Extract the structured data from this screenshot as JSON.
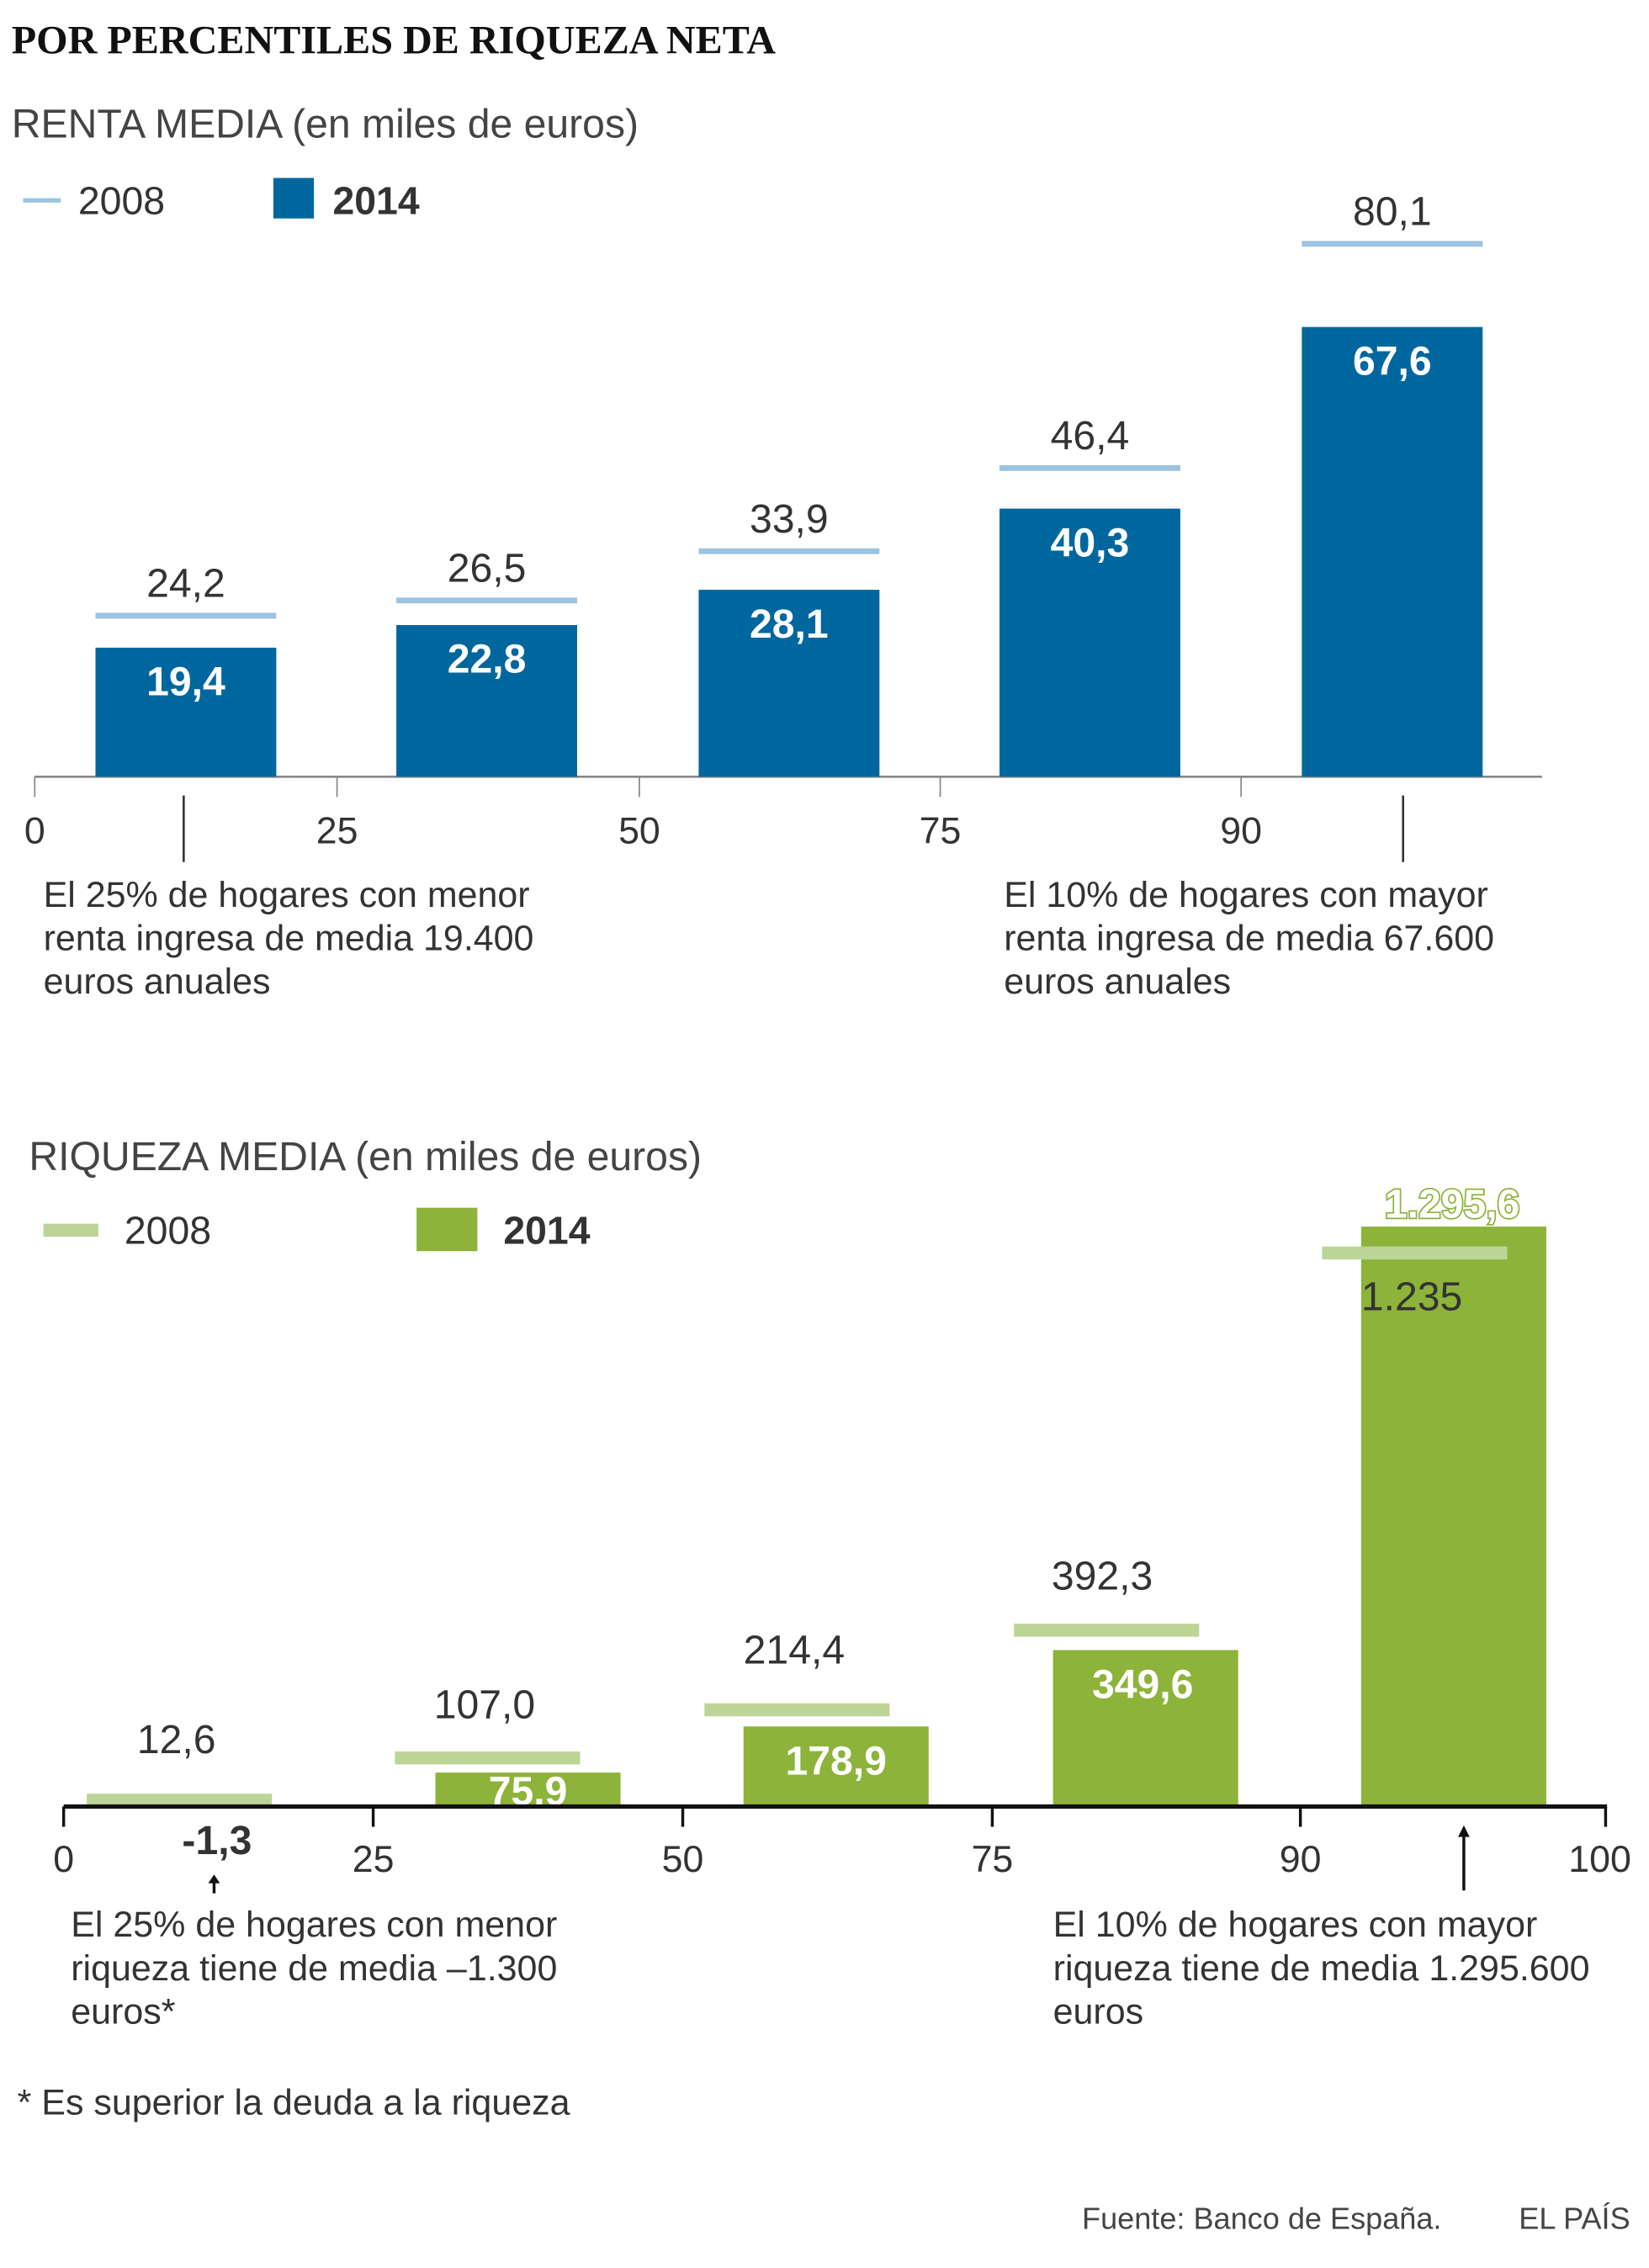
{
  "title": "POR PERCENTILES DE RIQUEZA NETA",
  "colors": {
    "blue_2014": "#00679e",
    "blue_2008": "#9cc3e0",
    "green_2014": "#8db33a",
    "green_2008": "#bcd597"
  },
  "chart_data": [
    {
      "type": "bar",
      "title": "RENTA MEDIA (en miles de euros)",
      "x_ticks": [
        "0",
        "25",
        "50",
        "75",
        "90"
      ],
      "categories": [
        "0-25",
        "25-50",
        "50-75",
        "75-90",
        "90-100"
      ],
      "series": [
        {
          "name": "2008",
          "style": "line",
          "values": [
            24.2,
            26.5,
            33.9,
            46.4,
            80.1
          ],
          "labels": [
            "24,2",
            "26,5",
            "33,9",
            "46,4",
            "80,1"
          ]
        },
        {
          "name": "2014",
          "style": "bar",
          "values": [
            19.4,
            22.8,
            28.1,
            40.3,
            67.6
          ],
          "labels": [
            "19,4",
            "22,8",
            "28,1",
            "40,3",
            "67,6"
          ]
        }
      ],
      "annotations": [
        {
          "lines": [
            "El 25% de hogares con menor",
            "renta ingresa de media 19.400",
            "euros anuales"
          ]
        },
        {
          "lines": [
            "El 10% de hogares con mayor",
            "renta ingresa  de media 67.600",
            "euros anuales"
          ]
        }
      ]
    },
    {
      "type": "bar",
      "title": "RIQUEZA MEDIA (en miles de euros)",
      "x_ticks": [
        "0",
        "25",
        "50",
        "75",
        "90",
        "100"
      ],
      "categories": [
        "0-25",
        "25-50",
        "50-75",
        "75-90",
        "90-100"
      ],
      "series": [
        {
          "name": "2008",
          "style": "line",
          "values": [
            12.6,
            107.0,
            214.4,
            392.3,
            1235
          ],
          "labels": [
            "12,6",
            "107,0",
            "214,4",
            "392,3",
            "1.235"
          ]
        },
        {
          "name": "2014",
          "style": "bar",
          "values": [
            -1.3,
            75.9,
            178.9,
            349.6,
            1295.6
          ],
          "labels": [
            "-1,3",
            "75.9",
            "178,9",
            "349,6",
            "1.295,6"
          ]
        }
      ],
      "annotations": [
        {
          "lines": [
            "El 25% de hogares con menor",
            "riqueza tiene de media –1.300",
            "euros*"
          ]
        },
        {
          "lines": [
            "El 10% de hogares con mayor",
            "riqueza tiene de media 1.295.600",
            "euros"
          ]
        }
      ]
    }
  ],
  "footnote": "* Es superior la deuda a la riqueza",
  "source": "Fuente: Banco de España.",
  "brand": "EL PAÍS"
}
